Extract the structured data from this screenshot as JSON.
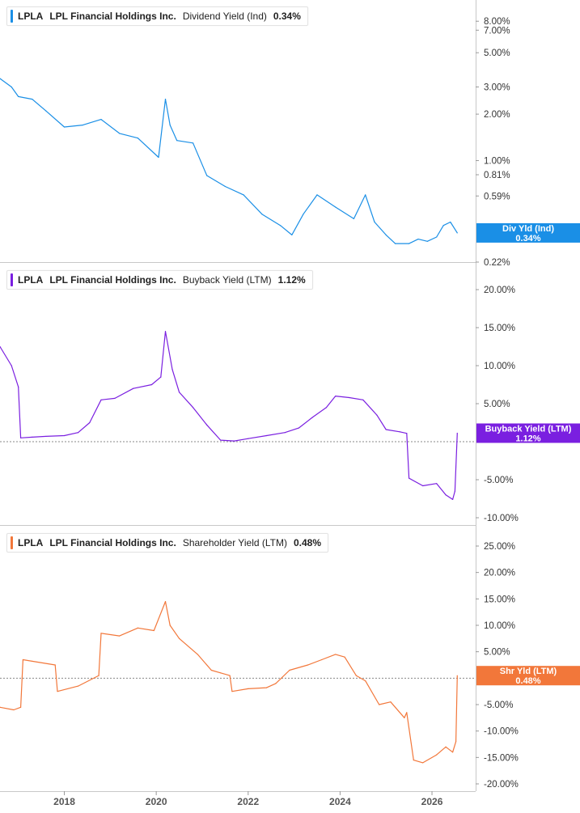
{
  "colors": {
    "dividend": "#1a8fe6",
    "buyback": "#7a1fe0",
    "shareholder": "#f2773a",
    "axis": "#c8c8c8",
    "zero_line": "#888888"
  },
  "x_axis": {
    "ticks": [
      "2018",
      "2020",
      "2022",
      "2024",
      "2026"
    ],
    "range": [
      2016.6,
      2026.95
    ]
  },
  "panels": [
    {
      "ticker": "LPLA",
      "company": "LPL Financial Holdings Inc.",
      "metric": "Dividend Yield (Ind)",
      "value": "0.34%",
      "tag_label": "Div Yld (Ind)",
      "tag_value": "0.34%"
    },
    {
      "ticker": "LPLA",
      "company": "LPL Financial Holdings Inc.",
      "metric": "Buyback Yield (LTM)",
      "value": "1.12%",
      "tag_label": "Buyback Yield (LTM)",
      "tag_value": "1.12%"
    },
    {
      "ticker": "LPLA",
      "company": "LPL Financial Holdings Inc.",
      "metric": "Shareholder Yield (LTM)",
      "value": "0.48%",
      "tag_label": "Shr Yld (LTM)",
      "tag_value": "0.48%"
    }
  ],
  "chart_data": [
    {
      "type": "line",
      "title": "LPLA LPL Financial Holdings Inc. Dividend Yield (Ind) 0.34%",
      "y_scale": "log",
      "ylim": [
        0.22,
        9.5
      ],
      "y_ticks": [
        0.22,
        0.59,
        0.81,
        1.0,
        2.0,
        3.0,
        5.0,
        7.0,
        8.0
      ],
      "y_tick_labels": [
        "0.22%",
        "0.59%",
        "0.81%",
        "1.00%",
        "2.00%",
        "3.00%",
        "5.00%",
        "7.00%",
        "8.00%"
      ],
      "series": [
        {
          "name": "Dividend Yield (Ind)",
          "x": [
            2016.6,
            2016.85,
            2017.0,
            2017.3,
            2017.6,
            2018.0,
            2018.4,
            2018.8,
            2019.2,
            2019.6,
            2020.05,
            2020.2,
            2020.3,
            2020.45,
            2020.8,
            2021.1,
            2021.5,
            2021.9,
            2022.3,
            2022.7,
            2022.95,
            2023.2,
            2023.5,
            2023.9,
            2024.3,
            2024.55,
            2024.75,
            2025.0,
            2025.2,
            2025.5,
            2025.7,
            2025.9,
            2026.1,
            2026.25,
            2026.4,
            2026.55
          ],
          "y": [
            3.4,
            3.0,
            2.6,
            2.5,
            2.1,
            1.65,
            1.7,
            1.85,
            1.5,
            1.4,
            1.05,
            2.5,
            1.7,
            1.35,
            1.3,
            0.8,
            0.68,
            0.6,
            0.45,
            0.38,
            0.33,
            0.45,
            0.6,
            0.5,
            0.42,
            0.6,
            0.4,
            0.33,
            0.29,
            0.29,
            0.31,
            0.3,
            0.32,
            0.38,
            0.4,
            0.34
          ]
        }
      ]
    },
    {
      "type": "line",
      "title": "LPLA LPL Financial Holdings Inc. Buyback Yield (LTM) 1.12%",
      "y_scale": "linear",
      "ylim": [
        -10.0,
        20.0
      ],
      "y_ticks": [
        -10,
        -5,
        5,
        10,
        15,
        20
      ],
      "y_tick_labels": [
        "-10.00%",
        "-5.00%",
        "5.00%",
        "10.00%",
        "15.00%",
        "20.00%"
      ],
      "series": [
        {
          "name": "Buyback Yield (LTM)",
          "x": [
            2016.6,
            2016.85,
            2017.0,
            2017.05,
            2017.3,
            2017.6,
            2018.0,
            2018.3,
            2018.55,
            2018.8,
            2019.1,
            2019.5,
            2019.9,
            2020.1,
            2020.2,
            2020.35,
            2020.5,
            2020.8,
            2021.1,
            2021.4,
            2021.7,
            2022.0,
            2022.4,
            2022.8,
            2023.1,
            2023.4,
            2023.7,
            2023.9,
            2024.2,
            2024.5,
            2024.8,
            2025.0,
            2025.3,
            2025.45,
            2025.5,
            2025.8,
            2026.1,
            2026.3,
            2026.45,
            2026.5,
            2026.55
          ],
          "y": [
            12.5,
            10.0,
            7.2,
            0.5,
            0.6,
            0.7,
            0.8,
            1.2,
            2.5,
            5.5,
            5.7,
            7.0,
            7.5,
            8.5,
            14.5,
            9.5,
            6.5,
            4.5,
            2.2,
            0.2,
            0.1,
            0.4,
            0.8,
            1.2,
            1.8,
            3.2,
            4.5,
            6.0,
            5.8,
            5.5,
            3.5,
            1.6,
            1.3,
            1.1,
            -4.8,
            -5.8,
            -5.5,
            -7.0,
            -7.6,
            -6.5,
            1.12
          ]
        }
      ]
    },
    {
      "type": "line",
      "title": "LPLA LPL Financial Holdings Inc. Shareholder Yield (LTM) 0.48%",
      "y_scale": "linear",
      "ylim": [
        -20.0,
        25.0
      ],
      "y_ticks": [
        -20,
        -15,
        -10,
        -5,
        5,
        10,
        15,
        20,
        25
      ],
      "y_tick_labels": [
        "-20.00%",
        "-15.00%",
        "-10.00%",
        "-5.00%",
        "5.00%",
        "10.00%",
        "15.00%",
        "20.00%",
        "25.00%"
      ],
      "series": [
        {
          "name": "Shareholder Yield (LTM)",
          "x": [
            2016.6,
            2016.9,
            2017.05,
            2017.1,
            2017.3,
            2017.8,
            2017.85,
            2018.3,
            2018.75,
            2018.8,
            2019.2,
            2019.6,
            2019.95,
            2020.2,
            2020.3,
            2020.5,
            2020.9,
            2021.2,
            2021.4,
            2021.6,
            2021.65,
            2022.0,
            2022.4,
            2022.6,
            2022.9,
            2023.3,
            2023.6,
            2023.9,
            2024.1,
            2024.35,
            2024.55,
            2024.85,
            2025.1,
            2025.4,
            2025.45,
            2025.6,
            2025.8,
            2026.1,
            2026.3,
            2026.45,
            2026.52,
            2026.55
          ],
          "y": [
            -5.5,
            -6.0,
            -5.5,
            3.5,
            3.2,
            2.5,
            -2.5,
            -1.5,
            0.5,
            8.5,
            8.0,
            9.5,
            9.0,
            14.5,
            10.0,
            7.5,
            4.5,
            1.5,
            1.0,
            0.5,
            -2.5,
            -2.0,
            -1.8,
            -1.0,
            1.5,
            2.5,
            3.5,
            4.5,
            4.0,
            0.5,
            -0.5,
            -5.0,
            -4.5,
            -7.5,
            -6.5,
            -15.5,
            -16.0,
            -14.5,
            -13.0,
            -14.0,
            -12.0,
            0.48
          ]
        }
      ]
    }
  ]
}
